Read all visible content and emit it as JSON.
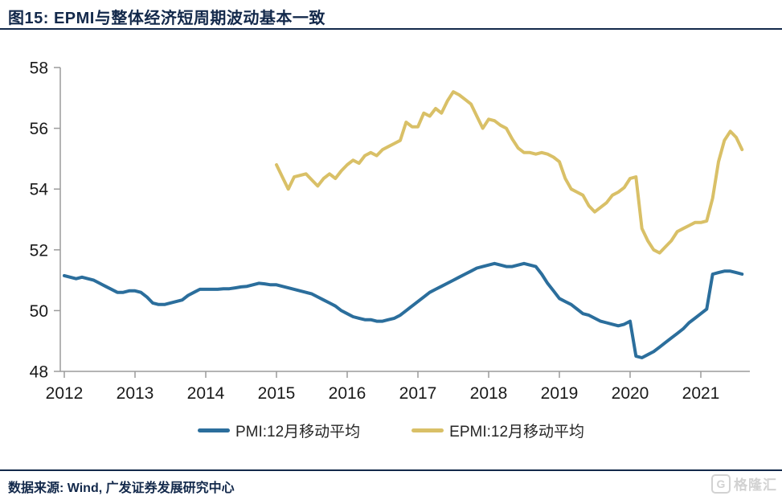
{
  "header": {
    "title": "图15:  EPMI与整体经济短周期波动基本一致"
  },
  "legend": {
    "pmi_label": "PMI:12月移动平均",
    "epmi_label": "EPMI:12月移动平均"
  },
  "footer": {
    "source": "数据来源: Wind, 广发证券发展研究中心",
    "logo_letter": "G",
    "logo_text": "格隆汇"
  },
  "colors": {
    "title_navy": "#13294b",
    "pmi_blue": "#2b6e9c",
    "epmi_yellow": "#d9c067",
    "axis_gray": "#9b9b9b",
    "tick_label": "#1a1a1a",
    "logo_gray": "#d2d2d2"
  },
  "chart_data": {
    "type": "line",
    "title": "图15:  EPMI与整体经济短周期波动基本一致",
    "xlabel": "",
    "ylabel": "",
    "ylim": [
      48,
      58
    ],
    "y_ticks": [
      48,
      50,
      52,
      54,
      56,
      58
    ],
    "x_tick_labels": [
      "2012",
      "2013",
      "2014",
      "2015",
      "2016",
      "2017",
      "2018",
      "2019",
      "2020",
      "2021"
    ],
    "grid": false,
    "legend_position": "bottom",
    "frequency": "monthly",
    "series": [
      {
        "name": "PMI:12月移动平均",
        "color": "#2b6e9c",
        "start_year": 2012,
        "start_month": 1,
        "values": [
          51.15,
          51.1,
          51.05,
          51.1,
          51.05,
          51.0,
          50.9,
          50.8,
          50.7,
          50.6,
          50.6,
          50.65,
          50.65,
          50.6,
          50.45,
          50.25,
          50.2,
          50.2,
          50.25,
          50.3,
          50.35,
          50.5,
          50.6,
          50.7,
          50.7,
          50.7,
          50.7,
          50.72,
          50.72,
          50.75,
          50.78,
          50.8,
          50.85,
          50.9,
          50.88,
          50.85,
          50.85,
          50.8,
          50.75,
          50.7,
          50.65,
          50.6,
          50.55,
          50.45,
          50.35,
          50.25,
          50.15,
          50.0,
          49.9,
          49.8,
          49.75,
          49.7,
          49.7,
          49.65,
          49.65,
          49.7,
          49.75,
          49.85,
          50.0,
          50.15,
          50.3,
          50.45,
          50.6,
          50.7,
          50.8,
          50.9,
          51.0,
          51.1,
          51.2,
          51.3,
          51.4,
          51.45,
          51.5,
          51.55,
          51.5,
          51.45,
          51.45,
          51.5,
          51.55,
          51.5,
          51.45,
          51.2,
          50.9,
          50.65,
          50.4,
          50.3,
          50.2,
          50.05,
          49.9,
          49.85,
          49.75,
          49.65,
          49.6,
          49.55,
          49.5,
          49.55,
          49.65,
          48.5,
          48.45,
          48.55,
          48.65,
          48.8,
          48.95,
          49.1,
          49.25,
          49.4,
          49.6,
          49.75,
          49.9,
          50.05,
          51.2,
          51.25,
          51.3,
          51.3,
          51.25,
          51.2
        ]
      },
      {
        "name": "EPMI:12月移动平均",
        "color": "#d9c067",
        "start_year": 2015,
        "start_month": 1,
        "values": [
          54.8,
          54.4,
          54.0,
          54.4,
          54.45,
          54.5,
          54.3,
          54.1,
          54.35,
          54.5,
          54.35,
          54.6,
          54.8,
          54.95,
          54.85,
          55.1,
          55.2,
          55.1,
          55.3,
          55.4,
          55.5,
          55.6,
          56.2,
          56.05,
          56.05,
          56.5,
          56.4,
          56.65,
          56.5,
          56.9,
          57.2,
          57.1,
          56.95,
          56.8,
          56.4,
          56.0,
          56.3,
          56.25,
          56.1,
          56.0,
          55.65,
          55.35,
          55.2,
          55.2,
          55.15,
          55.2,
          55.15,
          55.05,
          54.9,
          54.35,
          54.0,
          53.9,
          53.8,
          53.45,
          53.25,
          53.4,
          53.55,
          53.8,
          53.9,
          54.05,
          54.35,
          54.4,
          52.7,
          52.3,
          52.0,
          51.9,
          52.1,
          52.3,
          52.6,
          52.7,
          52.8,
          52.9,
          52.9,
          52.95,
          53.7,
          54.9,
          55.6,
          55.9,
          55.7,
          55.3
        ]
      }
    ]
  }
}
